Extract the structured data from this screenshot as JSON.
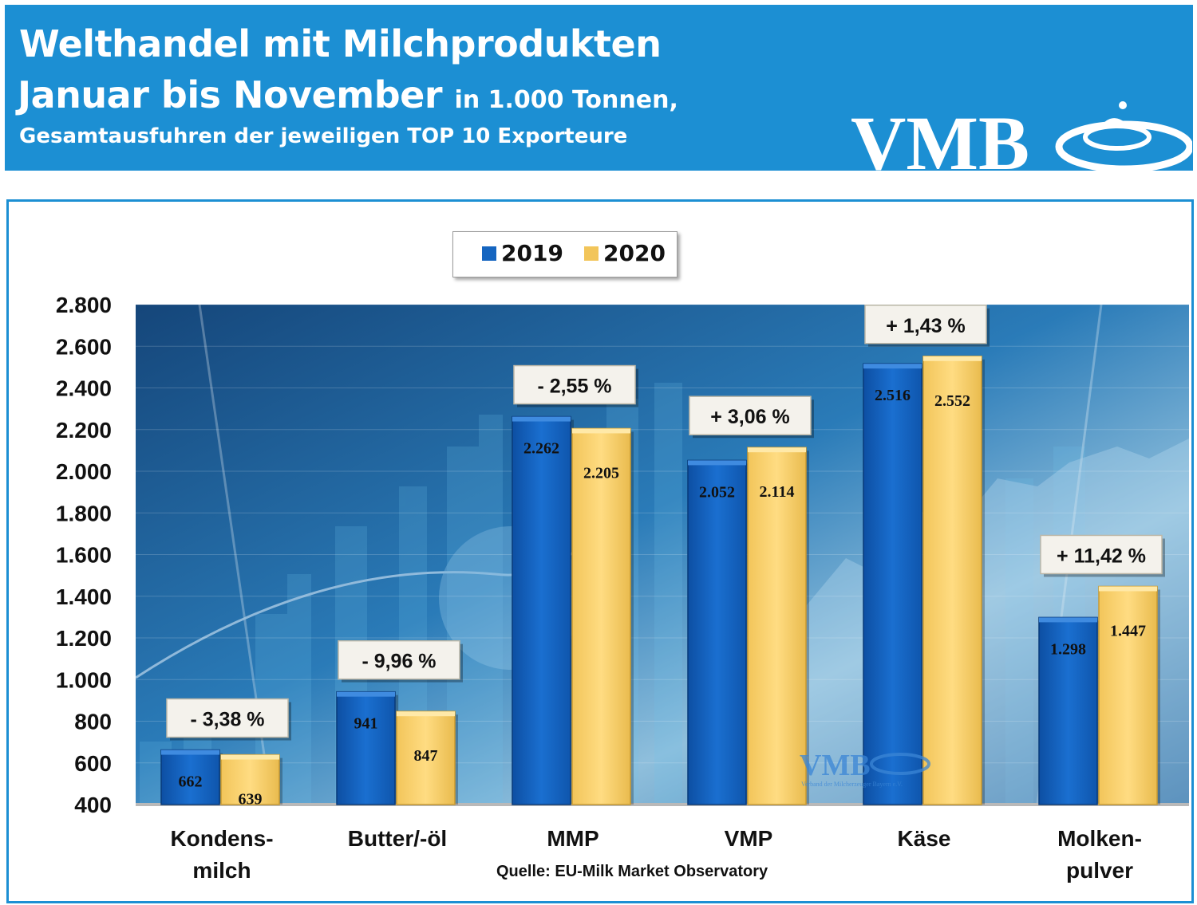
{
  "header": {
    "title_line1": "Welthandel mit Milchprodukten",
    "title_line2": "Januar bis November",
    "title_line2_unit": "in 1.000 Tonnen,",
    "subtitle": "Gesamtausfuhren der jeweiligen TOP 10 Exporteure",
    "logo_text": "VMB"
  },
  "watermark": {
    "logo_text": "VMB",
    "tagline": "Verband der Milcherzeuger Bayern e.V."
  },
  "source": "Quelle: EU-Milk  Market Observatory",
  "colors": {
    "header_bg": "#1c8fd3",
    "series_2019": "#1565c0",
    "series_2020": "#f7cf6a",
    "plot_bg": "#1e5f98"
  },
  "chart_data": {
    "type": "bar",
    "title": "Welthandel mit Milchprodukten Januar bis November in 1.000 Tonnen",
    "xlabel": "",
    "ylabel": "",
    "ylim": [
      400,
      2800
    ],
    "yticks": [
      "2.800",
      "2.600",
      "2.400",
      "2.200",
      "2.000",
      "1.800",
      "1.600",
      "1.400",
      "1.200",
      "1.000",
      "800",
      "600",
      "400"
    ],
    "ytick_values": [
      2800,
      2600,
      2400,
      2200,
      2000,
      1800,
      1600,
      1400,
      1200,
      1000,
      800,
      600,
      400
    ],
    "categories": [
      [
        "Kondens-",
        "milch"
      ],
      [
        "Butter/-öl"
      ],
      [
        "MMP"
      ],
      [
        "VMP"
      ],
      [
        "Käse"
      ],
      [
        "Molken-",
        "pulver"
      ]
    ],
    "series": [
      {
        "name": "2019",
        "values": [
          662,
          941,
          2262,
          2052,
          2516,
          1298
        ],
        "labels": [
          "662",
          "941",
          "2.262",
          "2.052",
          "2.516",
          "1.298"
        ]
      },
      {
        "name": "2020",
        "values": [
          639,
          847,
          2205,
          2114,
          2552,
          1447
        ],
        "labels": [
          "639",
          "847",
          "2.205",
          "2.114",
          "2.552",
          "1.447"
        ]
      }
    ],
    "changes": [
      "- 3,38 %",
      "- 9,96 %",
      "- 2,55 %",
      "+ 3,06 %",
      "+ 1,43 %",
      "+ 11,42 %"
    ],
    "legend": "top-center"
  }
}
